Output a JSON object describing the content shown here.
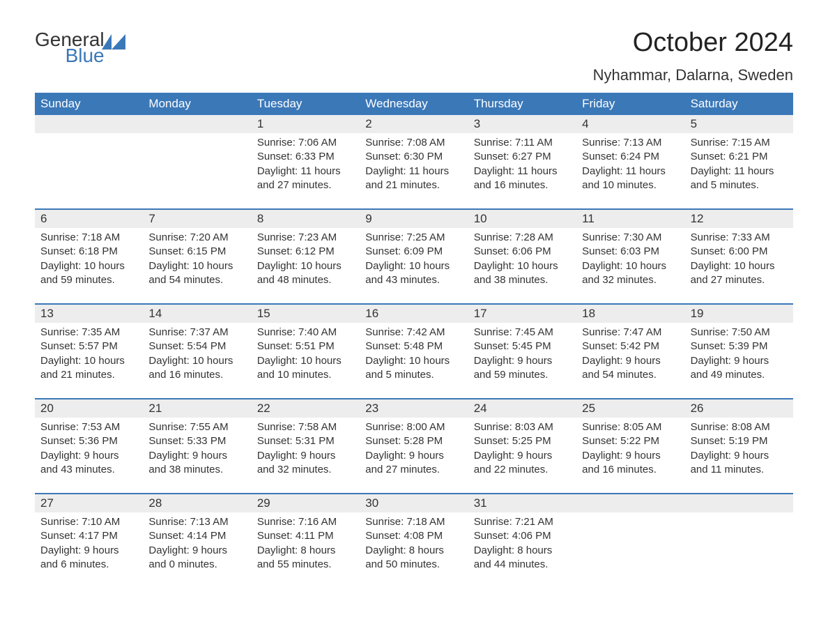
{
  "logo": {
    "general": "General",
    "blue": "Blue"
  },
  "header": {
    "month_title": "October 2024",
    "location": "Nyhammar, Dalarna, Sweden"
  },
  "colors": {
    "header_bg": "#3b78b8",
    "header_text": "#ffffff",
    "daynum_bg": "#ededed",
    "text": "#333333",
    "divider": "#3b78b8"
  },
  "weekdays": [
    "Sunday",
    "Monday",
    "Tuesday",
    "Wednesday",
    "Thursday",
    "Friday",
    "Saturday"
  ],
  "weeks": [
    [
      {
        "day": "",
        "sunrise": "",
        "sunset": "",
        "daylight": ""
      },
      {
        "day": "",
        "sunrise": "",
        "sunset": "",
        "daylight": ""
      },
      {
        "day": "1",
        "sunrise": "Sunrise: 7:06 AM",
        "sunset": "Sunset: 6:33 PM",
        "daylight": "Daylight: 11 hours and 27 minutes."
      },
      {
        "day": "2",
        "sunrise": "Sunrise: 7:08 AM",
        "sunset": "Sunset: 6:30 PM",
        "daylight": "Daylight: 11 hours and 21 minutes."
      },
      {
        "day": "3",
        "sunrise": "Sunrise: 7:11 AM",
        "sunset": "Sunset: 6:27 PM",
        "daylight": "Daylight: 11 hours and 16 minutes."
      },
      {
        "day": "4",
        "sunrise": "Sunrise: 7:13 AM",
        "sunset": "Sunset: 6:24 PM",
        "daylight": "Daylight: 11 hours and 10 minutes."
      },
      {
        "day": "5",
        "sunrise": "Sunrise: 7:15 AM",
        "sunset": "Sunset: 6:21 PM",
        "daylight": "Daylight: 11 hours and 5 minutes."
      }
    ],
    [
      {
        "day": "6",
        "sunrise": "Sunrise: 7:18 AM",
        "sunset": "Sunset: 6:18 PM",
        "daylight": "Daylight: 10 hours and 59 minutes."
      },
      {
        "day": "7",
        "sunrise": "Sunrise: 7:20 AM",
        "sunset": "Sunset: 6:15 PM",
        "daylight": "Daylight: 10 hours and 54 minutes."
      },
      {
        "day": "8",
        "sunrise": "Sunrise: 7:23 AM",
        "sunset": "Sunset: 6:12 PM",
        "daylight": "Daylight: 10 hours and 48 minutes."
      },
      {
        "day": "9",
        "sunrise": "Sunrise: 7:25 AM",
        "sunset": "Sunset: 6:09 PM",
        "daylight": "Daylight: 10 hours and 43 minutes."
      },
      {
        "day": "10",
        "sunrise": "Sunrise: 7:28 AM",
        "sunset": "Sunset: 6:06 PM",
        "daylight": "Daylight: 10 hours and 38 minutes."
      },
      {
        "day": "11",
        "sunrise": "Sunrise: 7:30 AM",
        "sunset": "Sunset: 6:03 PM",
        "daylight": "Daylight: 10 hours and 32 minutes."
      },
      {
        "day": "12",
        "sunrise": "Sunrise: 7:33 AM",
        "sunset": "Sunset: 6:00 PM",
        "daylight": "Daylight: 10 hours and 27 minutes."
      }
    ],
    [
      {
        "day": "13",
        "sunrise": "Sunrise: 7:35 AM",
        "sunset": "Sunset: 5:57 PM",
        "daylight": "Daylight: 10 hours and 21 minutes."
      },
      {
        "day": "14",
        "sunrise": "Sunrise: 7:37 AM",
        "sunset": "Sunset: 5:54 PM",
        "daylight": "Daylight: 10 hours and 16 minutes."
      },
      {
        "day": "15",
        "sunrise": "Sunrise: 7:40 AM",
        "sunset": "Sunset: 5:51 PM",
        "daylight": "Daylight: 10 hours and 10 minutes."
      },
      {
        "day": "16",
        "sunrise": "Sunrise: 7:42 AM",
        "sunset": "Sunset: 5:48 PM",
        "daylight": "Daylight: 10 hours and 5 minutes."
      },
      {
        "day": "17",
        "sunrise": "Sunrise: 7:45 AM",
        "sunset": "Sunset: 5:45 PM",
        "daylight": "Daylight: 9 hours and 59 minutes."
      },
      {
        "day": "18",
        "sunrise": "Sunrise: 7:47 AM",
        "sunset": "Sunset: 5:42 PM",
        "daylight": "Daylight: 9 hours and 54 minutes."
      },
      {
        "day": "19",
        "sunrise": "Sunrise: 7:50 AM",
        "sunset": "Sunset: 5:39 PM",
        "daylight": "Daylight: 9 hours and 49 minutes."
      }
    ],
    [
      {
        "day": "20",
        "sunrise": "Sunrise: 7:53 AM",
        "sunset": "Sunset: 5:36 PM",
        "daylight": "Daylight: 9 hours and 43 minutes."
      },
      {
        "day": "21",
        "sunrise": "Sunrise: 7:55 AM",
        "sunset": "Sunset: 5:33 PM",
        "daylight": "Daylight: 9 hours and 38 minutes."
      },
      {
        "day": "22",
        "sunrise": "Sunrise: 7:58 AM",
        "sunset": "Sunset: 5:31 PM",
        "daylight": "Daylight: 9 hours and 32 minutes."
      },
      {
        "day": "23",
        "sunrise": "Sunrise: 8:00 AM",
        "sunset": "Sunset: 5:28 PM",
        "daylight": "Daylight: 9 hours and 27 minutes."
      },
      {
        "day": "24",
        "sunrise": "Sunrise: 8:03 AM",
        "sunset": "Sunset: 5:25 PM",
        "daylight": "Daylight: 9 hours and 22 minutes."
      },
      {
        "day": "25",
        "sunrise": "Sunrise: 8:05 AM",
        "sunset": "Sunset: 5:22 PM",
        "daylight": "Daylight: 9 hours and 16 minutes."
      },
      {
        "day": "26",
        "sunrise": "Sunrise: 8:08 AM",
        "sunset": "Sunset: 5:19 PM",
        "daylight": "Daylight: 9 hours and 11 minutes."
      }
    ],
    [
      {
        "day": "27",
        "sunrise": "Sunrise: 7:10 AM",
        "sunset": "Sunset: 4:17 PM",
        "daylight": "Daylight: 9 hours and 6 minutes."
      },
      {
        "day": "28",
        "sunrise": "Sunrise: 7:13 AM",
        "sunset": "Sunset: 4:14 PM",
        "daylight": "Daylight: 9 hours and 0 minutes."
      },
      {
        "day": "29",
        "sunrise": "Sunrise: 7:16 AM",
        "sunset": "Sunset: 4:11 PM",
        "daylight": "Daylight: 8 hours and 55 minutes."
      },
      {
        "day": "30",
        "sunrise": "Sunrise: 7:18 AM",
        "sunset": "Sunset: 4:08 PM",
        "daylight": "Daylight: 8 hours and 50 minutes."
      },
      {
        "day": "31",
        "sunrise": "Sunrise: 7:21 AM",
        "sunset": "Sunset: 4:06 PM",
        "daylight": "Daylight: 8 hours and 44 minutes."
      },
      {
        "day": "",
        "sunrise": "",
        "sunset": "",
        "daylight": ""
      },
      {
        "day": "",
        "sunrise": "",
        "sunset": "",
        "daylight": ""
      }
    ]
  ]
}
